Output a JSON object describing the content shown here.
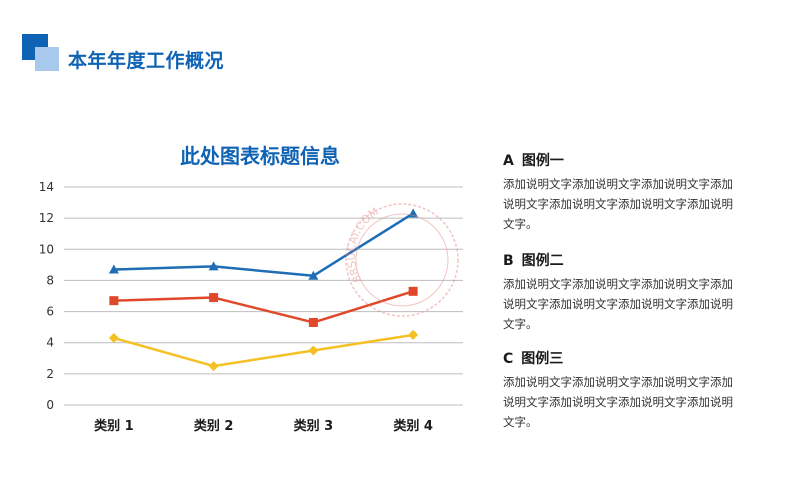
{
  "header": {
    "title": "本年年度工作概况"
  },
  "colors": {
    "blue": "#1f6db5",
    "red": "#e0482b",
    "yellow": "#f5c024",
    "accent": "#0f63b4"
  },
  "chart_data": {
    "type": "line",
    "title": "此处图表标题信息",
    "categories": [
      "类别 1",
      "类别 2",
      "类别 3",
      "类别 4"
    ],
    "series": [
      {
        "values": [
          8.7,
          8.9,
          8.3,
          12.3
        ],
        "color": "#1f6db5",
        "marker": "triangle"
      },
      {
        "values": [
          6.7,
          6.9,
          5.3,
          7.3
        ],
        "color": "#e0482b",
        "marker": "square"
      },
      {
        "values": [
          4.3,
          2.5,
          3.5,
          4.5
        ],
        "color": "#f5c024",
        "marker": "diamond"
      }
    ],
    "ylim": [
      0,
      14
    ],
    "yticks": [
      0,
      2,
      4,
      6,
      8,
      10,
      12,
      14
    ],
    "grid": true,
    "xlabel": "",
    "ylabel": ""
  },
  "legend": [
    {
      "letter": "A",
      "name": "图例一",
      "desc": "添加说明文字添加说明文字添加说明文字添加说明文字添加说明文字添加说明文字添加说明文字。"
    },
    {
      "letter": "B",
      "name": "图例二",
      "desc": "添加说明文字添加说明文字添加说明文字添加说明文字添加说明文字添加说明文字添加说明文字。"
    },
    {
      "letter": "C",
      "name": "图例三",
      "desc": "添加说明文字添加说明文字添加说明文字添加说明文字添加说明文字添加说明文字添加说明文字。"
    }
  ],
  "watermark": {
    "text": "88SUCAI.COM"
  }
}
